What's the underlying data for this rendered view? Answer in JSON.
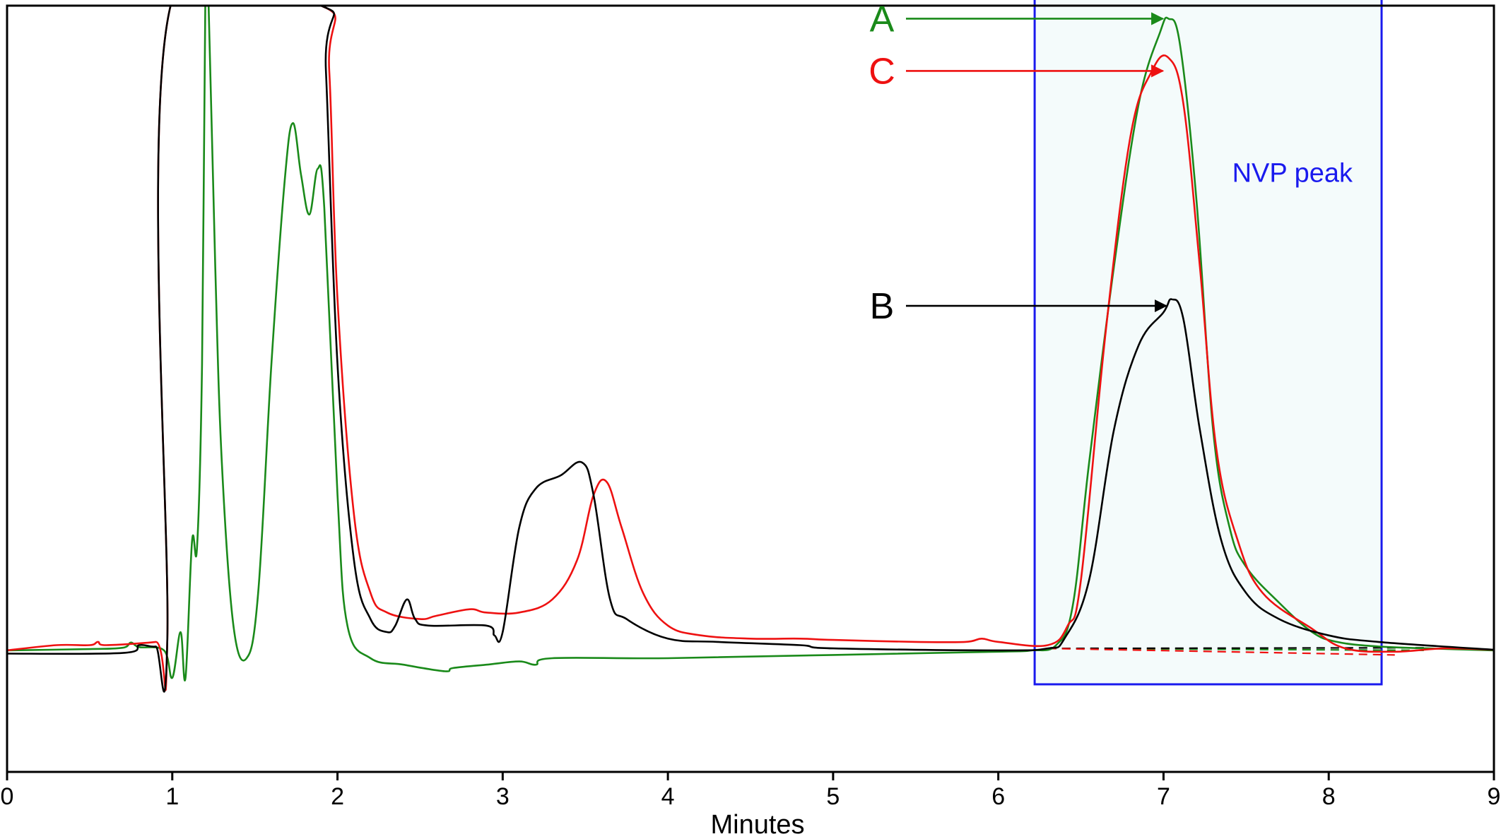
{
  "chart_data": {
    "type": "line",
    "title": "",
    "xlabel": "Minutes",
    "ylabel": "",
    "xlim": [
      0,
      9
    ],
    "ylim": [
      -0.15,
      1.0
    ],
    "xticks": [
      0,
      1,
      2,
      3,
      4,
      5,
      6,
      7,
      8,
      9
    ],
    "grid": false,
    "legend": "none",
    "series": [
      {
        "name": "A",
        "color": "#1a8a1a",
        "points": [
          [
            0,
            0.012
          ],
          [
            0.5,
            0.014
          ],
          [
            0.7,
            0.016
          ],
          [
            0.75,
            0.024
          ],
          [
            0.8,
            0.017
          ],
          [
            0.95,
            0.012
          ],
          [
            1.0,
            -0.03
          ],
          [
            1.05,
            0.04
          ],
          [
            1.08,
            -0.03
          ],
          [
            1.12,
            0.18
          ],
          [
            1.15,
            0.17
          ],
          [
            1.18,
            0.45
          ],
          [
            1.2,
            1.0
          ],
          [
            1.22,
            1.0
          ],
          [
            1.26,
            0.6
          ],
          [
            1.3,
            0.3
          ],
          [
            1.37,
            0.05
          ],
          [
            1.45,
            0.0
          ],
          [
            1.52,
            0.1
          ],
          [
            1.6,
            0.45
          ],
          [
            1.68,
            0.73
          ],
          [
            1.73,
            0.82
          ],
          [
            1.78,
            0.74
          ],
          [
            1.83,
            0.68
          ],
          [
            1.88,
            0.75
          ],
          [
            1.92,
            0.69
          ],
          [
            2.0,
            0.25
          ],
          [
            2.06,
            0.05
          ],
          [
            2.2,
            0.0
          ],
          [
            2.4,
            -0.01
          ],
          [
            2.65,
            -0.02
          ],
          [
            2.7,
            -0.015
          ],
          [
            2.9,
            -0.01
          ],
          [
            3.1,
            -0.005
          ],
          [
            3.2,
            -0.01
          ],
          [
            3.3,
            0.0
          ],
          [
            4.0,
            0.0
          ],
          [
            5.0,
            0.005
          ],
          [
            6.0,
            0.01
          ],
          [
            6.2,
            0.012
          ],
          [
            6.35,
            0.02
          ],
          [
            6.45,
            0.08
          ],
          [
            6.55,
            0.3
          ],
          [
            6.7,
            0.6
          ],
          [
            6.85,
            0.85
          ],
          [
            6.98,
            0.96
          ],
          [
            7.03,
            0.98
          ],
          [
            7.1,
            0.94
          ],
          [
            7.2,
            0.7
          ],
          [
            7.3,
            0.35
          ],
          [
            7.4,
            0.2
          ],
          [
            7.5,
            0.14
          ],
          [
            7.7,
            0.085
          ],
          [
            7.9,
            0.04
          ],
          [
            8.05,
            0.025
          ],
          [
            8.3,
            0.018
          ],
          [
            8.6,
            0.015
          ],
          [
            9.0,
            0.012
          ]
        ]
      },
      {
        "name": "B",
        "color": "#000000",
        "points": [
          [
            0,
            0.007
          ],
          [
            0.7,
            0.008
          ],
          [
            0.8,
            0.02
          ],
          [
            0.9,
            0.018
          ],
          [
            0.97,
            0.03
          ],
          [
            0.99,
            1.0
          ],
          [
            1.9,
            1.0
          ],
          [
            1.93,
            0.9
          ],
          [
            2.0,
            0.45
          ],
          [
            2.1,
            0.15
          ],
          [
            2.2,
            0.06
          ],
          [
            2.3,
            0.04
          ],
          [
            2.35,
            0.05
          ],
          [
            2.42,
            0.09
          ],
          [
            2.47,
            0.06
          ],
          [
            2.55,
            0.05
          ],
          [
            2.9,
            0.05
          ],
          [
            2.95,
            0.035
          ],
          [
            3.0,
            0.04
          ],
          [
            3.1,
            0.2
          ],
          [
            3.2,
            0.26
          ],
          [
            3.35,
            0.28
          ],
          [
            3.48,
            0.3
          ],
          [
            3.55,
            0.25
          ],
          [
            3.65,
            0.09
          ],
          [
            3.75,
            0.06
          ],
          [
            4.0,
            0.03
          ],
          [
            4.3,
            0.025
          ],
          [
            4.8,
            0.02
          ],
          [
            5.0,
            0.015
          ],
          [
            6.0,
            0.012
          ],
          [
            6.3,
            0.015
          ],
          [
            6.4,
            0.03
          ],
          [
            6.55,
            0.12
          ],
          [
            6.7,
            0.35
          ],
          [
            6.85,
            0.48
          ],
          [
            7.0,
            0.53
          ],
          [
            7.05,
            0.55
          ],
          [
            7.12,
            0.52
          ],
          [
            7.22,
            0.35
          ],
          [
            7.35,
            0.18
          ],
          [
            7.5,
            0.1
          ],
          [
            7.7,
            0.06
          ],
          [
            8.0,
            0.035
          ],
          [
            8.3,
            0.025
          ],
          [
            9.0,
            0.013
          ]
        ]
      },
      {
        "name": "C",
        "color": "#ee1111",
        "points": [
          [
            0,
            0.012
          ],
          [
            0.3,
            0.02
          ],
          [
            0.5,
            0.02
          ],
          [
            0.55,
            0.025
          ],
          [
            0.6,
            0.02
          ],
          [
            0.9,
            0.025
          ],
          [
            0.97,
            0.03
          ],
          [
            0.99,
            1.0
          ],
          [
            1.9,
            1.0
          ],
          [
            1.95,
            0.9
          ],
          [
            2.0,
            0.55
          ],
          [
            2.1,
            0.22
          ],
          [
            2.2,
            0.1
          ],
          [
            2.3,
            0.07
          ],
          [
            2.5,
            0.06
          ],
          [
            2.6,
            0.065
          ],
          [
            2.8,
            0.075
          ],
          [
            2.9,
            0.07
          ],
          [
            3.1,
            0.07
          ],
          [
            3.3,
            0.09
          ],
          [
            3.45,
            0.15
          ],
          [
            3.55,
            0.25
          ],
          [
            3.63,
            0.27
          ],
          [
            3.72,
            0.2
          ],
          [
            3.85,
            0.1
          ],
          [
            4.0,
            0.05
          ],
          [
            4.2,
            0.035
          ],
          [
            4.5,
            0.03
          ],
          [
            4.8,
            0.03
          ],
          [
            5.0,
            0.028
          ],
          [
            5.5,
            0.025
          ],
          [
            5.8,
            0.025
          ],
          [
            5.9,
            0.03
          ],
          [
            6.0,
            0.025
          ],
          [
            6.3,
            0.02
          ],
          [
            6.42,
            0.05
          ],
          [
            6.5,
            0.12
          ],
          [
            6.65,
            0.5
          ],
          [
            6.8,
            0.8
          ],
          [
            6.93,
            0.9
          ],
          [
            7.03,
            0.92
          ],
          [
            7.12,
            0.85
          ],
          [
            7.22,
            0.6
          ],
          [
            7.32,
            0.32
          ],
          [
            7.45,
            0.18
          ],
          [
            7.6,
            0.1
          ],
          [
            7.9,
            0.045
          ],
          [
            8.1,
            0.015
          ],
          [
            8.4,
            0.01
          ],
          [
            8.7,
            0.015
          ],
          [
            9.0,
            0.013
          ]
        ]
      }
    ],
    "baselines": [
      {
        "color": "#1a8a1a",
        "from": [
          6.3,
          0.015
        ],
        "to": [
          8.6,
          0.012
        ]
      },
      {
        "color": "#000000",
        "from": [
          6.3,
          0.015
        ],
        "to": [
          8.6,
          0.016
        ]
      },
      {
        "color": "#ee1111",
        "from": [
          6.3,
          0.015
        ],
        "to": [
          8.4,
          0.005
        ]
      }
    ],
    "region": {
      "label": "NVP peak",
      "x": [
        6.22,
        8.32
      ],
      "y": [
        -0.04,
        1.02
      ],
      "color": "#1a1aee",
      "fill": "#f4fbfb"
    },
    "annotations": [
      {
        "text": "A",
        "color": "#1a8a1a",
        "value": 0.98,
        "points_to_x": 7.03
      },
      {
        "text": "C",
        "color": "#ee1111",
        "value": 0.9,
        "points_to_x": 7.03
      },
      {
        "text": "B",
        "color": "#000000",
        "value": 0.54,
        "points_to_x": 7.05
      }
    ]
  }
}
